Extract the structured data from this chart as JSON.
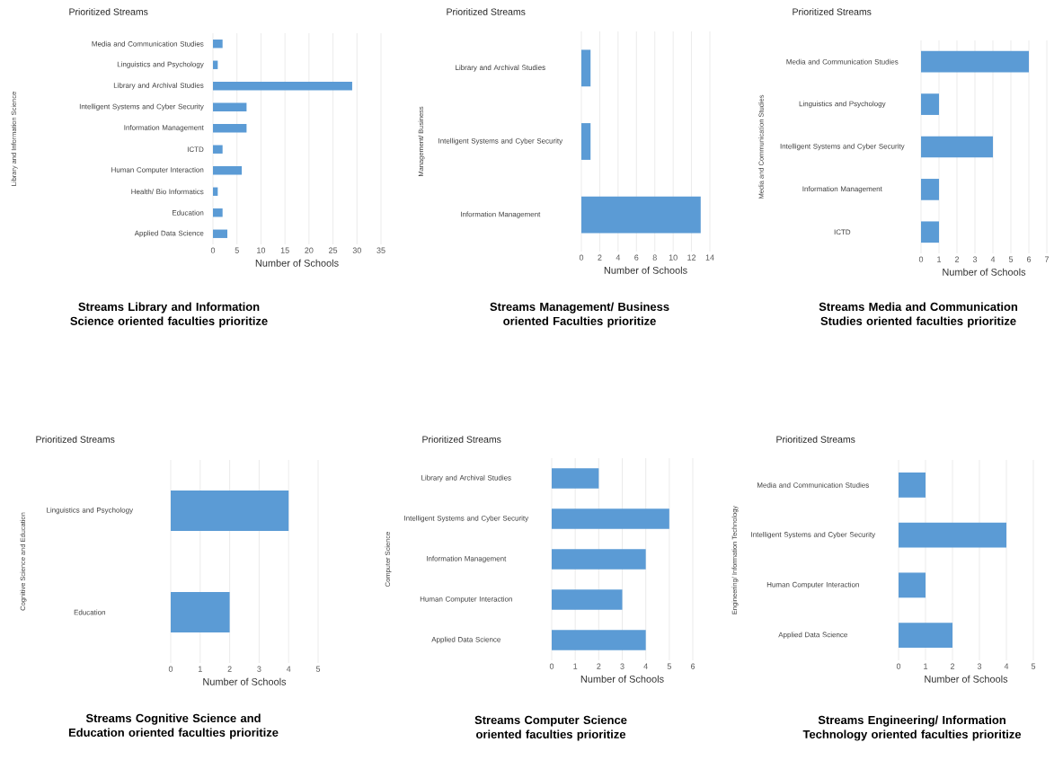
{
  "chart_data": [
    {
      "type": "bar",
      "orientation": "horizontal",
      "title": "Prioritized Streams",
      "ylabel": "Library and Information Science",
      "xlabel": "Number of Schools",
      "categories": [
        "Media and Communication Studies",
        "Linguistics and Psychology",
        "Library and Archival Studies",
        "Intelligent Systems and Cyber Security",
        "Information Management",
        "ICTD",
        "Human Computer Interaction",
        "Health/ Bio Informatics",
        "Education",
        "Applied Data Science"
      ],
      "values": [
        2,
        1,
        29,
        7,
        7,
        2,
        6,
        1,
        2,
        3
      ],
      "color": "#5b9bd5",
      "xlim": [
        0,
        35
      ],
      "xticks": [
        0,
        5,
        10,
        15,
        20,
        25,
        30,
        35
      ],
      "grid": "x",
      "annotations": [
        "Streams Library and Information Science oriented faculties prioritize"
      ]
    },
    {
      "type": "bar",
      "orientation": "horizontal",
      "title": "Prioritized Streams",
      "ylabel": "Management/ Business",
      "xlabel": "Number of Schools",
      "categories": [
        "Library and Archival Studies",
        "Intelligent Systems and Cyber Security",
        "Information Management"
      ],
      "values": [
        1,
        1,
        13
      ],
      "color": "#5b9bd5",
      "xlim": [
        0,
        14
      ],
      "xticks": [
        0,
        2,
        4,
        6,
        8,
        10,
        12,
        14
      ],
      "grid": "x",
      "annotations": [
        "Streams  Management/ Business oriented Faculties prioritize"
      ]
    },
    {
      "type": "bar",
      "orientation": "horizontal",
      "title": "Prioritized Streams",
      "ylabel": "Media and Communication Studies",
      "xlabel": "Number of Schools",
      "categories": [
        "Media and Communication Studies",
        "Linguistics and Psychology",
        "Intelligent Systems and Cyber Security",
        "Information Management",
        "ICTD"
      ],
      "values": [
        6,
        1,
        4,
        1,
        1
      ],
      "color": "#5b9bd5",
      "xlim": [
        0,
        7
      ],
      "xticks": [
        0,
        1,
        2,
        3,
        4,
        5,
        6,
        7
      ],
      "grid": "x",
      "annotations": [
        "Streams Media and Communication Studies oriented faculties prioritize"
      ]
    },
    {
      "type": "bar",
      "orientation": "horizontal",
      "title": "Prioritized Streams",
      "ylabel": "Cognitive Science and Education",
      "xlabel": "Number of Schools",
      "categories": [
        "Linguistics and Psychology",
        "Education"
      ],
      "values": [
        4,
        2
      ],
      "color": "#5b9bd5",
      "xlim": [
        0,
        5
      ],
      "xticks": [
        0,
        1,
        2,
        3,
        4,
        5
      ],
      "grid": "x",
      "annotations": [
        "Streams Cognitive Science and Education oriented faculties prioritize"
      ]
    },
    {
      "type": "bar",
      "orientation": "horizontal",
      "title": "Prioritized Streams",
      "ylabel": "Computer Science",
      "xlabel": "Number of Schools",
      "categories": [
        "Library and Archival Studies",
        "Intelligent Systems and Cyber Security",
        "Information Management",
        "Human Computer Interaction",
        "Applied Data Science"
      ],
      "values": [
        2,
        5,
        4,
        3,
        4
      ],
      "color": "#5b9bd5",
      "xlim": [
        0,
        6
      ],
      "xticks": [
        0,
        1,
        2,
        3,
        4,
        5,
        6
      ],
      "grid": "x",
      "annotations": [
        "Streams Computer Science oriented faculties prioritize"
      ]
    },
    {
      "type": "bar",
      "orientation": "horizontal",
      "title": "Prioritized Streams",
      "ylabel": "Engineering/ Information Technology",
      "xlabel": "Number of Schools",
      "categories": [
        "Media and Communication Studies",
        "Intelligent Systems and Cyber Security",
        "Human Computer Interaction",
        "Applied Data Science"
      ],
      "values": [
        1,
        4,
        1,
        2
      ],
      "color": "#5b9bd5",
      "xlim": [
        0,
        5
      ],
      "xticks": [
        0,
        1,
        2,
        3,
        4,
        5
      ],
      "grid": "x",
      "annotations": [
        "Streams Engineering/ Information Technology oriented faculties prioritize"
      ]
    }
  ]
}
